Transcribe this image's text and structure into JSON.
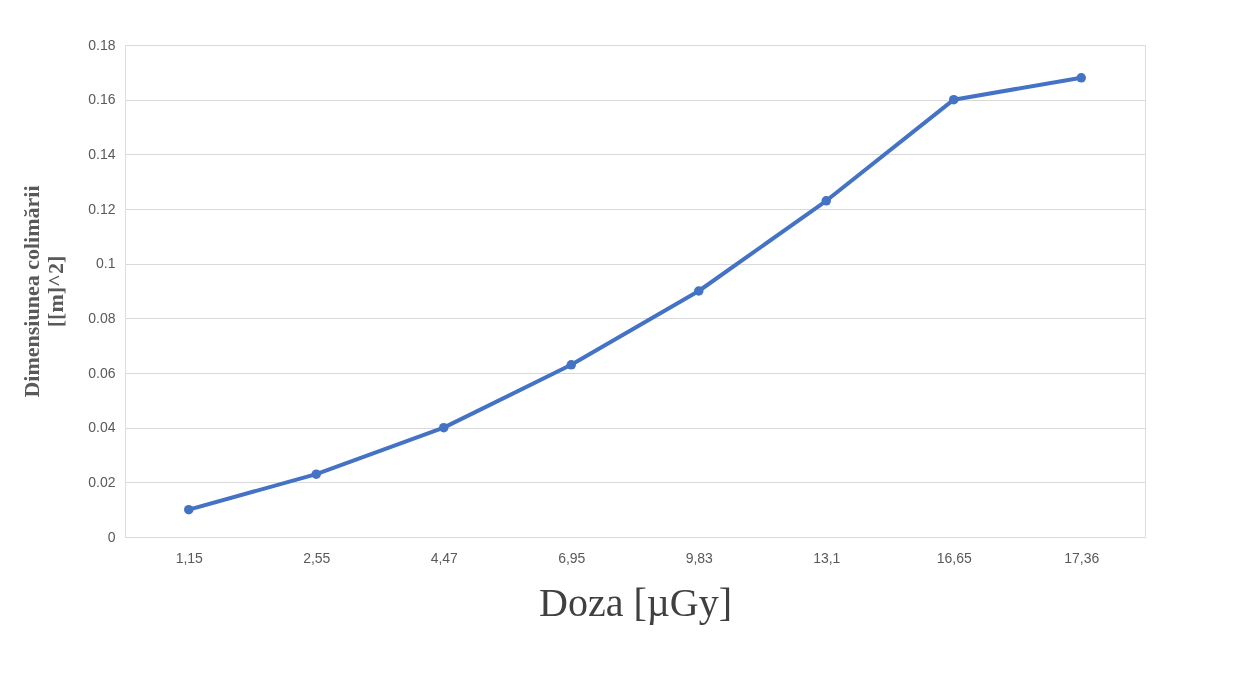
{
  "chart_data": {
    "type": "line",
    "xlabel": "Doza    [µGy]",
    "ylabel": "Dimensiunea colimării\n[[m]^2]",
    "categories": [
      "1,15",
      "2,55",
      "4,47",
      "6,95",
      "9,83",
      "13,1",
      "16,65",
      "17,36"
    ],
    "series": [
      {
        "color": "#4472c4",
        "values": [
          0.01,
          0.023,
          0.04,
          0.063,
          0.09,
          0.123,
          0.16,
          0.168
        ]
      }
    ],
    "ylim": [
      0,
      0.18
    ],
    "yticks": [
      0,
      0.02,
      0.04,
      0.06,
      0.08,
      0.1,
      0.12,
      0.14,
      0.16,
      0.18
    ],
    "grid": "y",
    "marker": "circle",
    "line_style": "solid"
  }
}
